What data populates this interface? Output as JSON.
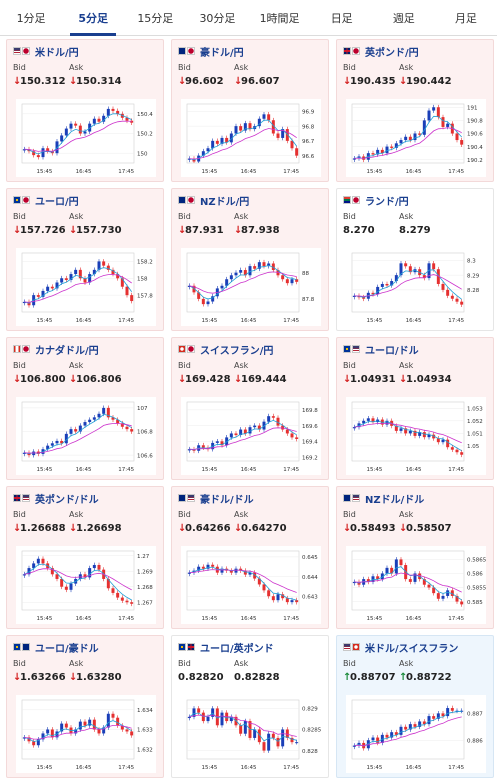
{
  "tabs": [
    {
      "label": "1分足",
      "active": false
    },
    {
      "label": "5分足",
      "active": true
    },
    {
      "label": "15分足",
      "active": false
    },
    {
      "label": "30分足",
      "active": false
    },
    {
      "label": "1時間足",
      "active": false
    },
    {
      "label": "日足",
      "active": false
    },
    {
      "label": "週足",
      "active": false
    },
    {
      "label": "月足",
      "active": false
    }
  ],
  "labels": {
    "bid": "Bid",
    "ask": "Ask"
  },
  "colors": {
    "up_candle": "#1a3fb8",
    "down_candle": "#e53030",
    "ma_short": "#1f9fd6",
    "ma_long": "#cc33cc",
    "down_text": "#d32020",
    "up_text": "#1a8a3a",
    "pair_text": "#1a3f8f"
  },
  "cards": [
    {
      "pair": "米ドル/円",
      "flag": "us-jp",
      "dir": "down",
      "bid": "150.312",
      "ask": "150.314",
      "bg": "down",
      "chart_data": {
        "type": "line",
        "x_ticks": [
          "15:45",
          "16:45",
          "17:45"
        ],
        "y_ticks": [
          "150.4",
          "150.2",
          "150"
        ],
        "ylim": [
          149.9,
          150.5
        ],
        "values": [
          150.04,
          150.02,
          149.98,
          149.96,
          150.05,
          150.02,
          150.0,
          150.12,
          150.18,
          150.25,
          150.3,
          150.28,
          150.2,
          150.22,
          150.3,
          150.35,
          150.32,
          150.38,
          150.45,
          150.43,
          150.4,
          150.36,
          150.33,
          150.31
        ]
      }
    },
    {
      "pair": "豪ドル/円",
      "flag": "au-jp",
      "dir": "down",
      "bid": "96.602",
      "ask": "96.607",
      "bg": "down",
      "chart_data": {
        "type": "line",
        "x_ticks": [
          "15:45",
          "16:45",
          "17:45"
        ],
        "y_ticks": [
          "96.9",
          "96.8",
          "96.7",
          "96.6"
        ],
        "ylim": [
          96.55,
          96.95
        ],
        "values": [
          96.58,
          96.56,
          96.6,
          96.63,
          96.65,
          96.7,
          96.68,
          96.72,
          96.69,
          96.75,
          96.8,
          96.77,
          96.82,
          96.78,
          96.8,
          96.85,
          96.88,
          96.84,
          96.75,
          96.72,
          96.78,
          96.7,
          96.65,
          96.6
        ]
      }
    },
    {
      "pair": "英ポンド/円",
      "flag": "gb-jp",
      "dir": "down",
      "bid": "190.435",
      "ask": "190.442",
      "bg": "down",
      "chart_data": {
        "type": "line",
        "x_ticks": [
          "15:45",
          "16:45",
          "17:45"
        ],
        "y_ticks": [
          "191",
          "190.8",
          "190.6",
          "190.4",
          "190.2"
        ],
        "ylim": [
          190.15,
          191.05
        ],
        "values": [
          190.22,
          190.25,
          190.2,
          190.3,
          190.28,
          190.35,
          190.3,
          190.4,
          190.38,
          190.45,
          190.5,
          190.55,
          190.5,
          190.6,
          190.58,
          190.8,
          190.95,
          191.0,
          190.85,
          190.7,
          190.75,
          190.6,
          190.5,
          190.43
        ]
      }
    },
    {
      "pair": "ユーロ/円",
      "flag": "eu-jp",
      "dir": "down",
      "bid": "157.726",
      "ask": "157.730",
      "bg": "down",
      "chart_data": {
        "type": "line",
        "x_ticks": [
          "15:45",
          "16:45",
          "17:45"
        ],
        "y_ticks": [
          "158.2",
          "158",
          "157.8"
        ],
        "ylim": [
          157.6,
          158.3
        ],
        "values": [
          157.72,
          157.68,
          157.8,
          157.78,
          157.85,
          157.9,
          157.88,
          157.95,
          158.0,
          157.98,
          158.05,
          158.1,
          158.0,
          157.95,
          158.05,
          158.1,
          158.2,
          158.15,
          158.1,
          158.05,
          158.0,
          157.9,
          157.8,
          157.73
        ]
      }
    },
    {
      "pair": "NZドル/円",
      "flag": "nz-jp",
      "dir": "down",
      "bid": "87.931",
      "ask": "87.938",
      "bg": "down",
      "chart_data": {
        "type": "line",
        "x_ticks": [
          "15:45",
          "16:45",
          "17:45"
        ],
        "y_ticks": [
          "88",
          "87.8"
        ],
        "ylim": [
          87.7,
          88.15
        ],
        "values": [
          87.9,
          87.85,
          87.8,
          87.76,
          87.78,
          87.82,
          87.88,
          87.9,
          87.95,
          87.98,
          88.0,
          88.02,
          87.98,
          88.05,
          88.03,
          88.08,
          88.05,
          88.07,
          88.02,
          87.98,
          87.95,
          87.92,
          87.95,
          87.93
        ]
      }
    },
    {
      "pair": "ランド/円",
      "flag": "za-jp",
      "dir": "none",
      "bid": "8.270",
      "ask": "8.279",
      "bg": "neutral",
      "chart_data": {
        "type": "line",
        "x_ticks": [
          "15:45",
          "16:45",
          "17:45"
        ],
        "y_ticks": [
          "8.3",
          "8.29",
          "8.28"
        ],
        "ylim": [
          8.265,
          8.305
        ],
        "values": [
          8.276,
          8.275,
          8.274,
          8.278,
          8.277,
          8.282,
          8.284,
          8.283,
          8.286,
          8.29,
          8.298,
          8.296,
          8.292,
          8.294,
          8.29,
          8.288,
          8.298,
          8.294,
          8.284,
          8.28,
          8.276,
          8.274,
          8.272,
          8.27
        ]
      }
    },
    {
      "pair": "カナダドル/円",
      "flag": "ca-jp",
      "dir": "down",
      "bid": "106.800",
      "ask": "106.806",
      "bg": "down",
      "chart_data": {
        "type": "line",
        "x_ticks": [
          "15:45",
          "16:45",
          "17:45"
        ],
        "y_ticks": [
          "107",
          "106.8",
          "106.6"
        ],
        "ylim": [
          106.55,
          107.05
        ],
        "values": [
          106.62,
          106.6,
          106.63,
          106.61,
          106.65,
          106.68,
          106.7,
          106.72,
          106.7,
          106.78,
          106.82,
          106.8,
          106.85,
          106.88,
          106.9,
          106.92,
          106.95,
          107.0,
          106.92,
          106.9,
          106.87,
          106.84,
          106.82,
          106.8
        ]
      }
    },
    {
      "pair": "スイスフラン/円",
      "flag": "ch-jp",
      "dir": "down",
      "bid": "169.428",
      "ask": "169.444",
      "bg": "down",
      "chart_data": {
        "type": "line",
        "x_ticks": [
          "15:45",
          "16:45",
          "17:45"
        ],
        "y_ticks": [
          "169.8",
          "169.6",
          "169.4",
          "169.2"
        ],
        "ylim": [
          169.15,
          169.9
        ],
        "values": [
          169.3,
          169.28,
          169.35,
          169.32,
          169.3,
          169.38,
          169.4,
          169.35,
          169.45,
          169.5,
          169.48,
          169.55,
          169.5,
          169.58,
          169.6,
          169.55,
          169.65,
          169.72,
          169.7,
          169.6,
          169.55,
          169.5,
          169.45,
          169.43
        ]
      }
    },
    {
      "pair": "ユーロ/ドル",
      "flag": "eu-us",
      "dir": "down",
      "bid": "1.04931",
      "ask": "1.04934",
      "bg": "down",
      "chart_data": {
        "type": "line",
        "x_ticks": [
          "15:45",
          "16:45",
          "17:45"
        ],
        "y_ticks": [
          "1.053",
          "1.052",
          "1.051",
          "1.05"
        ],
        "ylim": [
          1.0488,
          1.0535
        ],
        "values": [
          1.0515,
          1.0518,
          1.052,
          1.0522,
          1.0519,
          1.0521,
          1.0517,
          1.052,
          1.0516,
          1.0512,
          1.0514,
          1.051,
          1.0512,
          1.0508,
          1.0511,
          1.0507,
          1.0509,
          1.0506,
          1.0503,
          1.0505,
          1.0499,
          1.0497,
          1.0495,
          1.0493
        ]
      }
    },
    {
      "pair": "英ポンド/ドル",
      "flag": "gb-us",
      "dir": "down",
      "bid": "1.26688",
      "ask": "1.26698",
      "bg": "down",
      "chart_data": {
        "type": "line",
        "x_ticks": [
          "15:45",
          "16:45",
          "17:45"
        ],
        "y_ticks": [
          "1.27",
          "1.269",
          "1.268",
          "1.267"
        ],
        "ylim": [
          1.2665,
          1.2703
        ],
        "values": [
          1.2688,
          1.2692,
          1.2695,
          1.2698,
          1.2695,
          1.2692,
          1.2688,
          1.2685,
          1.268,
          1.2678,
          1.2682,
          1.2685,
          1.2688,
          1.2686,
          1.2692,
          1.2694,
          1.2691,
          1.2685,
          1.2679,
          1.2676,
          1.2673,
          1.2671,
          1.267,
          1.2669
        ]
      }
    },
    {
      "pair": "豪ドル/ドル",
      "flag": "au-us",
      "dir": "down",
      "bid": "0.64266",
      "ask": "0.64270",
      "bg": "down",
      "chart_data": {
        "type": "line",
        "x_ticks": [
          "15:45",
          "16:45",
          "17:45"
        ],
        "y_ticks": [
          "0.645",
          "0.644",
          "0.643"
        ],
        "ylim": [
          0.6423,
          0.6453
        ],
        "values": [
          0.6442,
          0.6443,
          0.6445,
          0.6444,
          0.6446,
          0.6445,
          0.6442,
          0.6444,
          0.6443,
          0.6442,
          0.6444,
          0.6443,
          0.6441,
          0.6442,
          0.6439,
          0.6436,
          0.6433,
          0.643,
          0.6428,
          0.6431,
          0.6429,
          0.6427,
          0.6428,
          0.6427
        ]
      }
    },
    {
      "pair": "NZドル/ドル",
      "flag": "nz-us",
      "dir": "down",
      "bid": "0.58493",
      "ask": "0.58507",
      "bg": "down",
      "chart_data": {
        "type": "line",
        "x_ticks": [
          "15:45",
          "16:45",
          "17:45"
        ],
        "y_ticks": [
          "0.5865",
          "0.586",
          "0.5855",
          "0.585"
        ],
        "ylim": [
          0.5847,
          0.5868
        ],
        "values": [
          0.5857,
          0.5856,
          0.5858,
          0.5857,
          0.5859,
          0.5858,
          0.586,
          0.5862,
          0.586,
          0.5865,
          0.5863,
          0.5858,
          0.5857,
          0.586,
          0.5858,
          0.5856,
          0.5855,
          0.5853,
          0.5851,
          0.5852,
          0.5854,
          0.5852,
          0.585,
          0.5849
        ]
      }
    },
    {
      "pair": "ユーロ/豪ドル",
      "flag": "eu-au",
      "dir": "down",
      "bid": "1.63266",
      "ask": "1.63280",
      "bg": "down",
      "chart_data": {
        "type": "line",
        "x_ticks": [
          "15:45",
          "16:45",
          "17:45"
        ],
        "y_ticks": [
          "1.634",
          "1.633",
          "1.632"
        ],
        "ylim": [
          1.6315,
          1.6345
        ],
        "values": [
          1.6326,
          1.6324,
          1.6322,
          1.6325,
          1.6328,
          1.633,
          1.6326,
          1.6329,
          1.6333,
          1.6331,
          1.6328,
          1.633,
          1.6334,
          1.6332,
          1.6335,
          1.633,
          1.6328,
          1.6331,
          1.6338,
          1.6336,
          1.6332,
          1.633,
          1.6329,
          1.6327
        ]
      }
    },
    {
      "pair": "ユーロ/英ポンド",
      "flag": "eu-gb",
      "dir": "none",
      "bid": "0.82820",
      "ask": "0.82828",
      "bg": "neutral",
      "chart_data": {
        "type": "line",
        "x_ticks": [
          "15:45",
          "16:45",
          "17:45"
        ],
        "y_ticks": [
          "0.829",
          "0.8285",
          "0.828"
        ],
        "ylim": [
          0.8278,
          0.8292
        ],
        "values": [
          0.8288,
          0.829,
          0.8289,
          0.8287,
          0.8288,
          0.829,
          0.8286,
          0.8289,
          0.8287,
          0.8288,
          0.8286,
          0.8284,
          0.8287,
          0.8283,
          0.8285,
          0.8282,
          0.828,
          0.8284,
          0.8283,
          0.8281,
          0.8285,
          0.8283,
          0.8282,
          0.8282
        ]
      }
    },
    {
      "pair": "米ドル/スイスフラン",
      "flag": "us-ch",
      "dir": "up",
      "bid": "0.88707",
      "ask": "0.88722",
      "bg": "up",
      "chart_data": {
        "type": "line",
        "x_ticks": [
          "15:45",
          "16:45",
          "17:45"
        ],
        "y_ticks": [
          "0.887",
          "0.886"
        ],
        "ylim": [
          0.8853,
          0.8875
        ],
        "values": [
          0.8858,
          0.8859,
          0.8857,
          0.886,
          0.8861,
          0.8859,
          0.8862,
          0.8861,
          0.8863,
          0.8862,
          0.8865,
          0.8864,
          0.8866,
          0.8865,
          0.8867,
          0.8866,
          0.8869,
          0.8868,
          0.887,
          0.8869,
          0.8872,
          0.8871,
          0.8871,
          0.8871
        ]
      }
    }
  ]
}
